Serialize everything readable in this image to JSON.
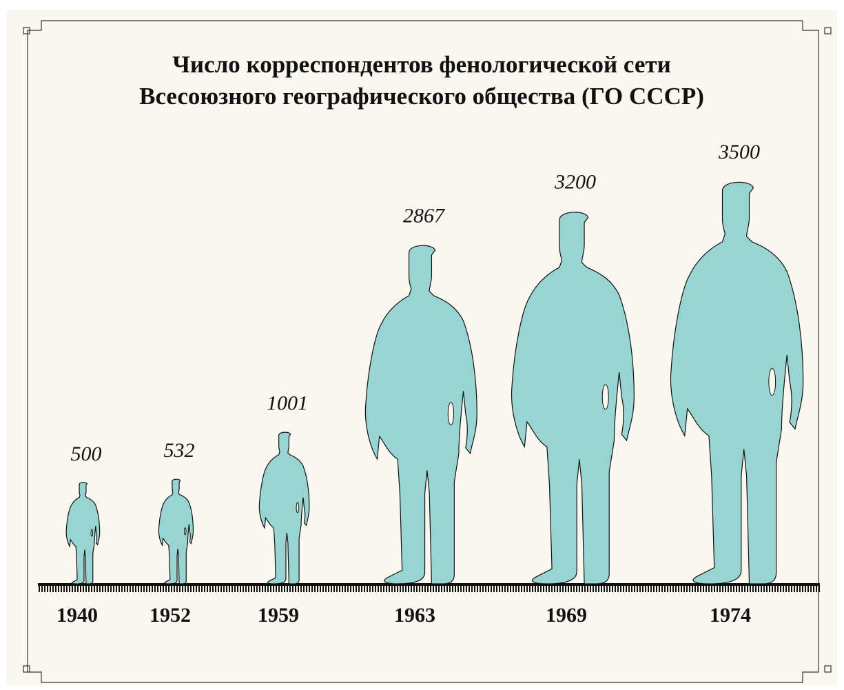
{
  "chart_data": {
    "type": "pictogram",
    "title": [
      "Число корреспондентов фенологической сети",
      "Всесоюзного географического общества (ГО СССР)"
    ],
    "categories": [
      "1940",
      "1952",
      "1959",
      "1963",
      "1969",
      "1974"
    ],
    "values": [
      500,
      532,
      1001,
      2867,
      3200,
      3500
    ],
    "color": "#98d4d2"
  }
}
